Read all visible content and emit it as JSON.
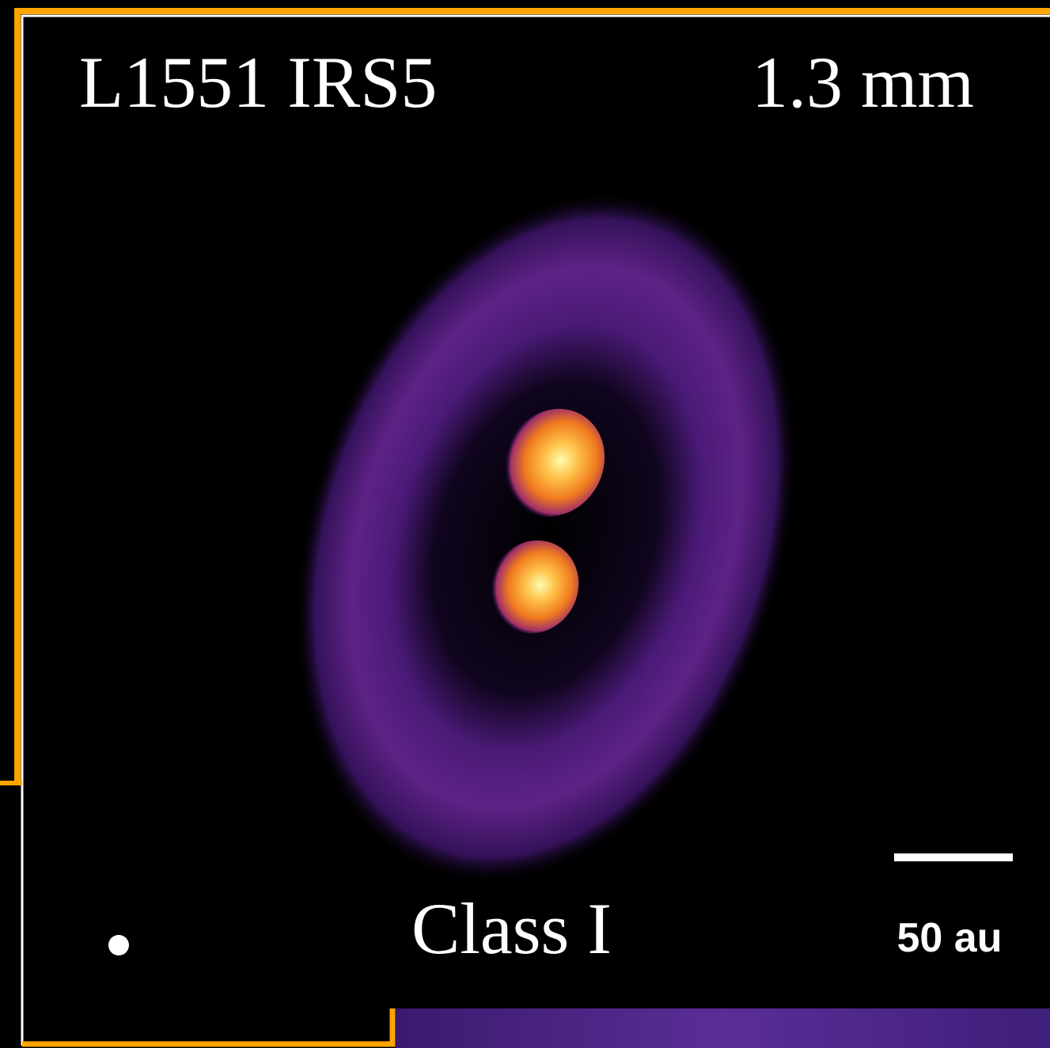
{
  "labels": {
    "source": "L1551 IRS5",
    "wavelength": "1.3 mm",
    "class": "Class I",
    "scale_bar": "50 au"
  }
}
